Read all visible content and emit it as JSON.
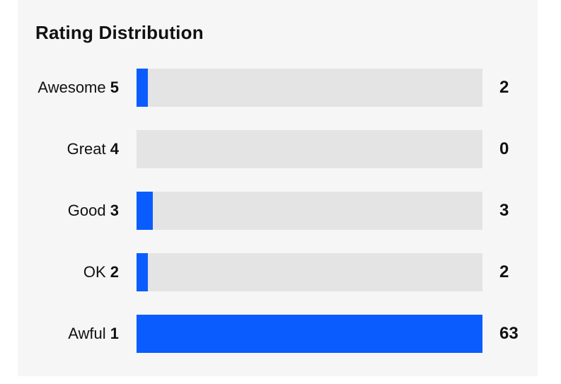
{
  "title": "Rating Distribution",
  "colors": {
    "panel_bg": "#f6f6f6",
    "track": "#e4e4e4",
    "fill": "#0a5cff",
    "text": "#111111"
  },
  "rows": [
    {
      "label": "Awesome",
      "stars": "5",
      "count": "2",
      "fraction": 0.0317
    },
    {
      "label": "Great",
      "stars": "4",
      "count": "0",
      "fraction": 0
    },
    {
      "label": "Good",
      "stars": "3",
      "count": "3",
      "fraction": 0.0476
    },
    {
      "label": "OK",
      "stars": "2",
      "count": "2",
      "fraction": 0.0317
    },
    {
      "label": "Awful",
      "stars": "1",
      "count": "63",
      "fraction": 1
    }
  ]
}
